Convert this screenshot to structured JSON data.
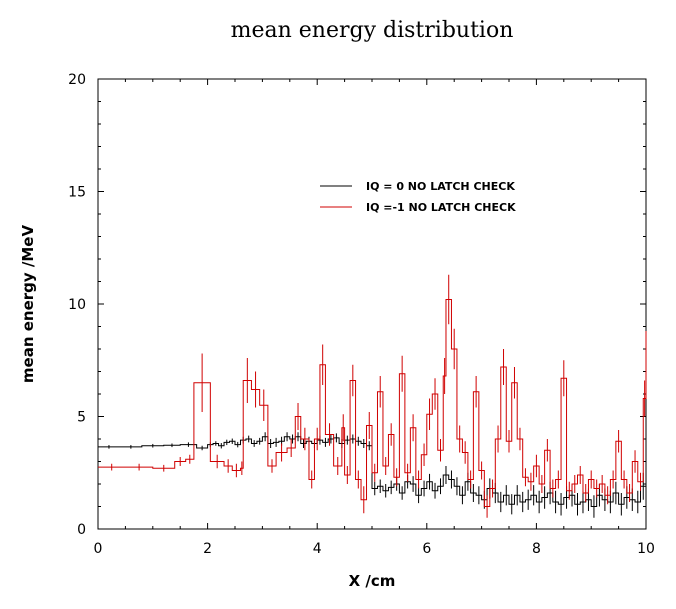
{
  "chart_data": {
    "type": "line",
    "title": "mean energy distribution",
    "xlabel": "X /cm",
    "ylabel": "mean energy /MeV",
    "xlim": [
      0,
      10
    ],
    "ylim": [
      0,
      20
    ],
    "xticks": [
      "0",
      "2",
      "4",
      "6",
      "8",
      "10"
    ],
    "yticks": [
      "0",
      "5",
      "10",
      "15",
      "20"
    ],
    "grid": false,
    "legend_position": "top-right",
    "style": "step histogram with error bars",
    "series": [
      {
        "name": "IQ = 0 NO LATCH CHECK",
        "color": "#000000",
        "x": [
          0,
          0.4,
          0.8,
          1.2,
          1.5,
          1.8,
          2.0,
          2.1,
          2.2,
          2.3,
          2.4,
          2.5,
          2.6,
          2.7,
          2.8,
          2.9,
          3.0,
          3.1,
          3.2,
          3.3,
          3.4,
          3.5,
          3.6,
          3.7,
          3.8,
          3.9,
          4.0,
          4.1,
          4.2,
          4.3,
          4.4,
          4.5,
          4.6,
          4.7,
          4.8,
          4.9,
          5.0,
          5.1,
          5.2,
          5.3,
          5.4,
          5.5,
          5.6,
          5.7,
          5.8,
          5.9,
          6.0,
          6.1,
          6.2,
          6.3,
          6.4,
          6.5,
          6.6,
          6.7,
          6.8,
          6.9,
          7.0,
          7.1,
          7.2,
          7.3,
          7.4,
          7.5,
          7.6,
          7.7,
          7.8,
          7.9,
          8.0,
          8.1,
          8.2,
          8.3,
          8.4,
          8.5,
          8.6,
          8.7,
          8.8,
          8.9,
          9.0,
          9.1,
          9.2,
          9.3,
          9.4,
          9.5,
          9.6,
          9.7,
          9.8,
          9.9,
          10.0
        ],
        "y": [
          3.65,
          3.65,
          3.7,
          3.72,
          3.75,
          3.6,
          3.75,
          3.8,
          3.7,
          3.85,
          3.9,
          3.75,
          3.95,
          4.0,
          3.8,
          3.9,
          4.1,
          3.8,
          3.85,
          3.9,
          4.1,
          4.0,
          4.1,
          3.8,
          3.9,
          3.8,
          3.95,
          3.85,
          4.0,
          4.05,
          3.8,
          3.95,
          4.0,
          3.9,
          3.8,
          3.7,
          1.8,
          1.9,
          1.7,
          1.85,
          2.0,
          1.6,
          2.1,
          2.0,
          1.5,
          1.8,
          2.1,
          1.7,
          1.9,
          2.4,
          2.2,
          1.9,
          1.5,
          2.1,
          1.6,
          1.5,
          1.3,
          1.8,
          1.6,
          1.2,
          1.5,
          1.1,
          1.5,
          1.2,
          1.3,
          1.5,
          1.2,
          1.4,
          1.6,
          1.2,
          1.1,
          1.4,
          1.5,
          1.1,
          1.2,
          1.3,
          1.0,
          1.5,
          1.3,
          1.2,
          1.6,
          1.1,
          1.4,
          1.3,
          1.2,
          1.9,
          1.5
        ],
        "err": [
          0.08,
          0.08,
          0.08,
          0.08,
          0.1,
          0.1,
          0.1,
          0.1,
          0.12,
          0.12,
          0.12,
          0.12,
          0.15,
          0.15,
          0.15,
          0.15,
          0.2,
          0.2,
          0.2,
          0.2,
          0.2,
          0.2,
          0.2,
          0.2,
          0.2,
          0.2,
          0.2,
          0.2,
          0.2,
          0.2,
          0.2,
          0.2,
          0.2,
          0.2,
          0.2,
          0.2,
          0.3,
          0.3,
          0.3,
          0.3,
          0.3,
          0.3,
          0.3,
          0.35,
          0.35,
          0.35,
          0.35,
          0.35,
          0.35,
          0.4,
          0.4,
          0.4,
          0.4,
          0.4,
          0.4,
          0.4,
          0.4,
          0.45,
          0.45,
          0.45,
          0.45,
          0.45,
          0.45,
          0.45,
          0.45,
          0.45,
          0.5,
          0.5,
          0.5,
          0.5,
          0.5,
          0.5,
          0.5,
          0.5,
          0.5,
          0.5,
          0.5,
          0.5,
          0.5,
          0.5,
          0.5,
          0.5,
          0.5,
          0.5,
          0.5,
          0.6,
          0.6
        ]
      },
      {
        "name": "IQ =-1 NO LATCH CHECK",
        "color": "#d00000",
        "x": [
          0,
          0.5,
          1.0,
          1.4,
          1.6,
          1.75,
          2.05,
          2.3,
          2.45,
          2.6,
          2.65,
          2.8,
          2.95,
          3.1,
          3.25,
          3.45,
          3.6,
          3.7,
          3.85,
          3.95,
          4.05,
          4.15,
          4.3,
          4.45,
          4.5,
          4.6,
          4.7,
          4.8,
          4.9,
          5.0,
          5.1,
          5.2,
          5.3,
          5.4,
          5.5,
          5.6,
          5.7,
          5.8,
          5.9,
          6.0,
          6.1,
          6.2,
          6.3,
          6.35,
          6.45,
          6.55,
          6.65,
          6.75,
          6.85,
          6.95,
          7.05,
          7.15,
          7.25,
          7.35,
          7.45,
          7.55,
          7.65,
          7.75,
          7.85,
          7.95,
          8.05,
          8.15,
          8.25,
          8.35,
          8.45,
          8.55,
          8.65,
          8.75,
          8.85,
          8.95,
          9.05,
          9.15,
          9.25,
          9.35,
          9.45,
          9.55,
          9.65,
          9.75,
          9.85,
          9.95,
          10.0
        ],
        "y": [
          2.75,
          2.75,
          2.7,
          3.0,
          3.1,
          6.5,
          3.0,
          2.8,
          2.6,
          2.7,
          6.6,
          6.2,
          5.5,
          2.8,
          3.4,
          3.6,
          5.0,
          4.0,
          2.2,
          4.0,
          7.3,
          4.2,
          2.8,
          4.5,
          2.4,
          6.6,
          2.2,
          1.3,
          4.6,
          2.5,
          6.1,
          2.8,
          4.2,
          2.3,
          6.9,
          2.5,
          4.5,
          2.2,
          3.3,
          5.1,
          6.0,
          3.5,
          6.8,
          10.2,
          8.0,
          4.0,
          3.4,
          2.2,
          6.1,
          2.6,
          1.0,
          1.8,
          4.0,
          7.2,
          3.9,
          6.5,
          4.0,
          2.3,
          2.1,
          2.8,
          2.0,
          3.5,
          1.8,
          2.2,
          6.7,
          1.7,
          2.0,
          2.4,
          1.6,
          2.2,
          1.8,
          2.0,
          1.5,
          2.2,
          3.9,
          2.2,
          1.6,
          3.0,
          2.1,
          5.8,
          7.9
        ],
        "err": [
          0.15,
          0.15,
          0.15,
          0.2,
          0.2,
          1.3,
          0.3,
          0.3,
          0.3,
          0.3,
          1.0,
          0.8,
          0.7,
          0.3,
          0.4,
          0.4,
          0.6,
          0.5,
          0.4,
          0.5,
          0.9,
          0.5,
          0.4,
          0.6,
          0.4,
          0.7,
          0.4,
          0.6,
          0.6,
          0.4,
          0.7,
          0.4,
          0.5,
          0.4,
          0.8,
          0.4,
          0.6,
          0.4,
          0.5,
          0.7,
          0.7,
          0.5,
          0.8,
          1.1,
          0.9,
          0.6,
          0.5,
          0.4,
          0.7,
          0.4,
          0.5,
          0.4,
          0.6,
          0.8,
          0.5,
          0.7,
          0.5,
          0.4,
          0.4,
          0.5,
          0.4,
          0.5,
          0.4,
          0.4,
          0.8,
          0.4,
          0.4,
          0.4,
          0.4,
          0.4,
          0.4,
          0.4,
          0.4,
          0.4,
          0.5,
          0.4,
          0.4,
          0.5,
          0.4,
          0.8,
          0.9
        ]
      }
    ]
  }
}
